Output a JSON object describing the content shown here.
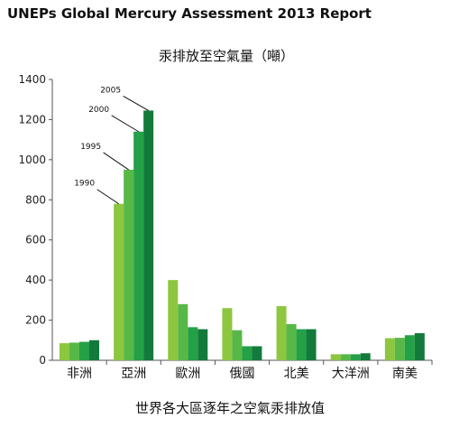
{
  "chart_data": {
    "type": "bar",
    "header": "UNEPs Global Mercury Assessment 2013 Report",
    "title": "汞排放至空氣量（噸）",
    "xlabel": "世界各大區逐年之空氣汞排放值",
    "ylabel": "",
    "ylim": [
      0,
      1400
    ],
    "yticks": [
      0,
      200,
      400,
      600,
      800,
      1000,
      1200,
      1400
    ],
    "grid": false,
    "categories": [
      "非洲",
      "亞洲",
      "歐洲",
      "俄國",
      "北美",
      "大洋洲",
      "南美"
    ],
    "series": [
      {
        "name": "1990",
        "color": "#8dc63f",
        "values": [
          85,
          780,
          400,
          260,
          270,
          30,
          110
        ]
      },
      {
        "name": "1995",
        "color": "#57b847",
        "values": [
          88,
          950,
          280,
          150,
          180,
          30,
          112
        ]
      },
      {
        "name": "2000",
        "color": "#24a047",
        "values": [
          92,
          1140,
          165,
          70,
          155,
          30,
          125
        ]
      },
      {
        "name": "2005",
        "color": "#137a3c",
        "values": [
          100,
          1245,
          155,
          70,
          155,
          35,
          135
        ]
      }
    ],
    "annotations": [
      {
        "text": "1990",
        "category": "亞洲",
        "series": "1990"
      },
      {
        "text": "1995",
        "category": "亞洲",
        "series": "1995"
      },
      {
        "text": "2000",
        "category": "亞洲",
        "series": "2000"
      },
      {
        "text": "2005",
        "category": "亞洲",
        "series": "2005"
      }
    ]
  }
}
